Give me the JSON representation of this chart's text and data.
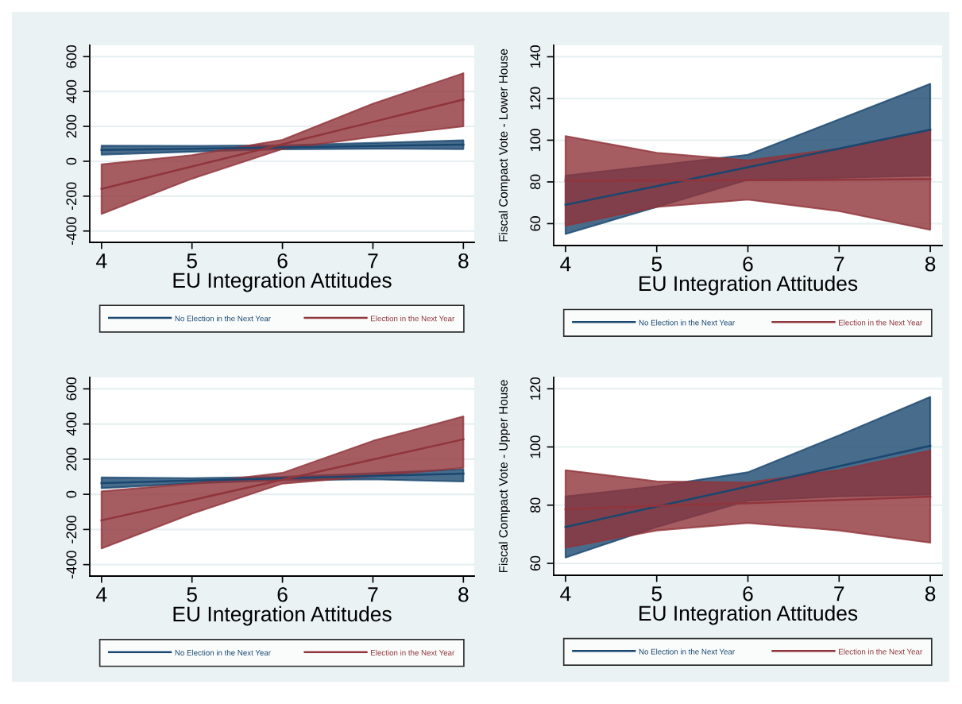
{
  "chart_data": [
    {
      "type": "line",
      "x": [
        4,
        5,
        6,
        7,
        8
      ],
      "xlim": [
        3.87,
        8.12
      ],
      "xticks": [
        4,
        5,
        6,
        7,
        8
      ],
      "ylim": [
        -465,
        665
      ],
      "yticks": [
        -400,
        -200,
        0,
        200,
        400,
        600
      ],
      "xlabel": "EU Integration Attitudes",
      "grid": "y",
      "legend": "bottom",
      "series": [
        {
          "name": "No Election in the Next Year",
          "color": "#1a476f",
          "values": [
            65,
            72,
            80,
            88,
            95
          ],
          "lower": [
            38,
            55,
            68,
            72,
            70
          ],
          "upper": [
            90,
            88,
            92,
            105,
            120
          ]
        },
        {
          "name": "Election in the Next Year",
          "color": "#90353b",
          "values": [
            -158,
            -30,
            98,
            226,
            354
          ],
          "lower": [
            -302,
            -100,
            70,
            140,
            200
          ],
          "upper": [
            -18,
            35,
            123,
            330,
            505
          ]
        }
      ]
    },
    {
      "type": "line",
      "x": [
        4,
        5,
        6,
        7,
        8
      ],
      "xlim": [
        3.87,
        8.13
      ],
      "xticks": [
        4,
        5,
        6,
        7,
        8
      ],
      "ylim": [
        49.5,
        145.5
      ],
      "yticks": [
        60,
        80,
        100,
        120,
        140
      ],
      "xlabel": "EU Integration Attitudes",
      "ylabel": "Fiscal Compact Vote - Lower House",
      "grid": "y",
      "legend": "bottom",
      "series": [
        {
          "name": "No Election in the Next Year",
          "color": "#1a476f",
          "values": [
            69,
            78,
            87,
            96,
            105
          ],
          "lower": [
            55,
            68,
            81,
            82,
            83
          ],
          "upper": [
            83,
            88,
            93,
            110,
            127
          ]
        },
        {
          "name": "Election in the Next Year",
          "color": "#90353b",
          "values": [
            80.6,
            80.7,
            80.8,
            81,
            81.3
          ],
          "lower": [
            59,
            68,
            71.5,
            66,
            57
          ],
          "upper": [
            102,
            94,
            90.3,
            96,
            105
          ]
        }
      ]
    },
    {
      "type": "line",
      "x": [
        4,
        5,
        6,
        7,
        8
      ],
      "xlim": [
        3.87,
        8.12
      ],
      "xticks": [
        4,
        5,
        6,
        7,
        8
      ],
      "ylim": [
        -465,
        665
      ],
      "yticks": [
        -400,
        -200,
        0,
        200,
        400,
        600
      ],
      "xlabel": "EU Integration Attitudes",
      "grid": "y",
      "legend": "bottom",
      "series": [
        {
          "name": "No Election in the Next Year",
          "color": "#1a476f",
          "values": [
            64,
            78,
            91,
            105,
            118
          ],
          "lower": [
            35,
            62,
            80,
            85,
            73
          ],
          "upper": [
            96,
            92,
            100,
            120,
            143
          ]
        },
        {
          "name": "Election in the Next Year",
          "color": "#90353b",
          "values": [
            -148,
            -33,
            83,
            198,
            313
          ],
          "lower": [
            -308,
            -110,
            61,
            104,
            151
          ],
          "upper": [
            17,
            61,
            122,
            304,
            443
          ]
        }
      ]
    },
    {
      "type": "line",
      "x": [
        4,
        5,
        6,
        7,
        8
      ],
      "xlim": [
        3.87,
        8.13
      ],
      "xticks": [
        4,
        5,
        6,
        7,
        8
      ],
      "ylim": [
        55.9,
        123.9
      ],
      "yticks": [
        60,
        80,
        100,
        120
      ],
      "xlabel": "EU Integration Attitudes",
      "ylabel": "Fiscal Compact Vote - Upper House",
      "grid": "y",
      "legend": "bottom",
      "series": [
        {
          "name": "No Election in the Next Year",
          "color": "#1a476f",
          "values": [
            72.5,
            79.5,
            86.4,
            93.4,
            100.4
          ],
          "lower": [
            62,
            72.5,
            81.5,
            83,
            83.6
          ],
          "upper": [
            83,
            86.5,
            91.3,
            104,
            117.2
          ]
        },
        {
          "name": "Election in the Next Year",
          "color": "#90353b",
          "values": [
            78.6,
            79.8,
            80.7,
            81.8,
            82.9
          ],
          "lower": [
            65.4,
            71.3,
            73.9,
            71.3,
            67.1
          ],
          "upper": [
            92,
            88.2,
            87.8,
            92.1,
            98.8
          ]
        }
      ]
    }
  ]
}
